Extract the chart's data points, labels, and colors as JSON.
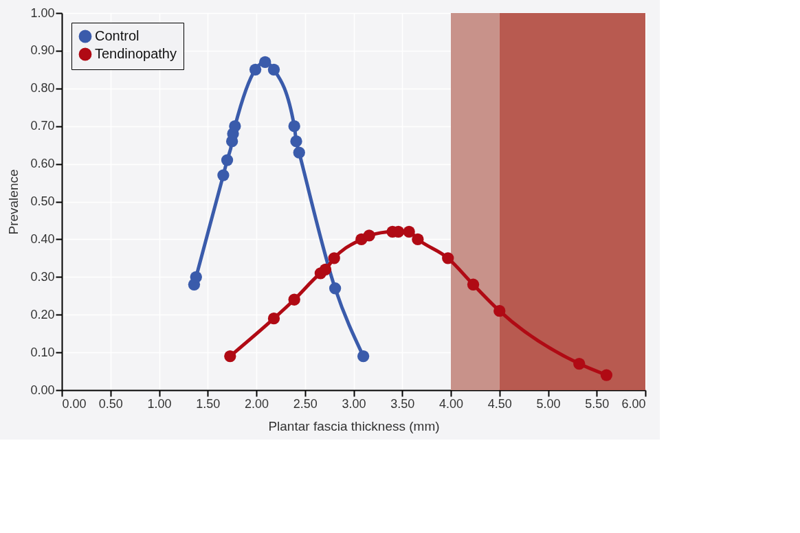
{
  "chart_data": {
    "type": "line",
    "xlabel": "Plantar fascia thickness (mm)",
    "ylabel": "Prevalence",
    "series": [
      {
        "name": "Control",
        "color": "#3a5bab",
        "x": [
          1.36,
          1.38,
          1.66,
          1.7,
          1.75,
          1.76,
          1.78,
          1.99,
          2.09,
          2.18,
          2.39,
          2.41,
          2.44,
          2.81,
          3.1
        ],
        "values": [
          0.28,
          0.3,
          0.57,
          0.61,
          0.66,
          0.68,
          0.7,
          0.85,
          0.87,
          0.85,
          0.7,
          0.66,
          0.63,
          0.27,
          0.09
        ]
      },
      {
        "name": "Tendinopathy",
        "color": "#b00a14",
        "x": [
          1.73,
          2.18,
          2.39,
          2.66,
          2.71,
          2.8,
          3.08,
          3.16,
          3.4,
          3.46,
          3.57,
          3.66,
          3.97,
          4.23,
          4.5,
          5.32,
          5.6
        ],
        "values": [
          0.09,
          0.19,
          0.24,
          0.31,
          0.32,
          0.35,
          0.4,
          0.41,
          0.42,
          0.42,
          0.42,
          0.4,
          0.35,
          0.28,
          0.21,
          0.07,
          0.04
        ]
      }
    ],
    "xlim": [
      0,
      6
    ],
    "ylim": [
      0,
      1
    ],
    "xticks": [
      {
        "value": 0,
        "label": "0.00"
      },
      {
        "value": 0.5,
        "label": "0.50"
      },
      {
        "value": 1,
        "label": "1.00"
      },
      {
        "value": 1.5,
        "label": "1.50"
      },
      {
        "value": 2,
        "label": "2.00"
      },
      {
        "value": 2.5,
        "label": "2.50"
      },
      {
        "value": 3,
        "label": "3.00"
      },
      {
        "value": 3.5,
        "label": "3.50"
      },
      {
        "value": 4,
        "label": "4.00"
      },
      {
        "value": 4.5,
        "label": "4.50"
      },
      {
        "value": 5,
        "label": "5.00"
      },
      {
        "value": 5.5,
        "label": "5.50"
      },
      {
        "value": 6,
        "label": "6.00"
      }
    ],
    "yticks": [
      {
        "value": 0,
        "label": "0.00"
      },
      {
        "value": 0.1,
        "label": "0.10"
      },
      {
        "value": 0.2,
        "label": "0.20"
      },
      {
        "value": 0.3,
        "label": "0.30"
      },
      {
        "value": 0.4,
        "label": "0.40"
      },
      {
        "value": 0.5,
        "label": "0.50"
      },
      {
        "value": 0.6,
        "label": "0.60"
      },
      {
        "value": 0.7,
        "label": "0.70"
      },
      {
        "value": 0.8,
        "label": "0.80"
      },
      {
        "value": 0.9,
        "label": "0.90"
      },
      {
        "value": 1,
        "label": "1.00"
      }
    ],
    "bands": [
      {
        "axis": "x",
        "from": 4.0,
        "to": 4.5,
        "color": "#c8928a"
      },
      {
        "axis": "x",
        "from": 4.5,
        "to": 6.0,
        "color": "#b85a50"
      }
    ],
    "grid": true,
    "legend": "top left",
    "marker": "circle",
    "line_style": "solid"
  }
}
